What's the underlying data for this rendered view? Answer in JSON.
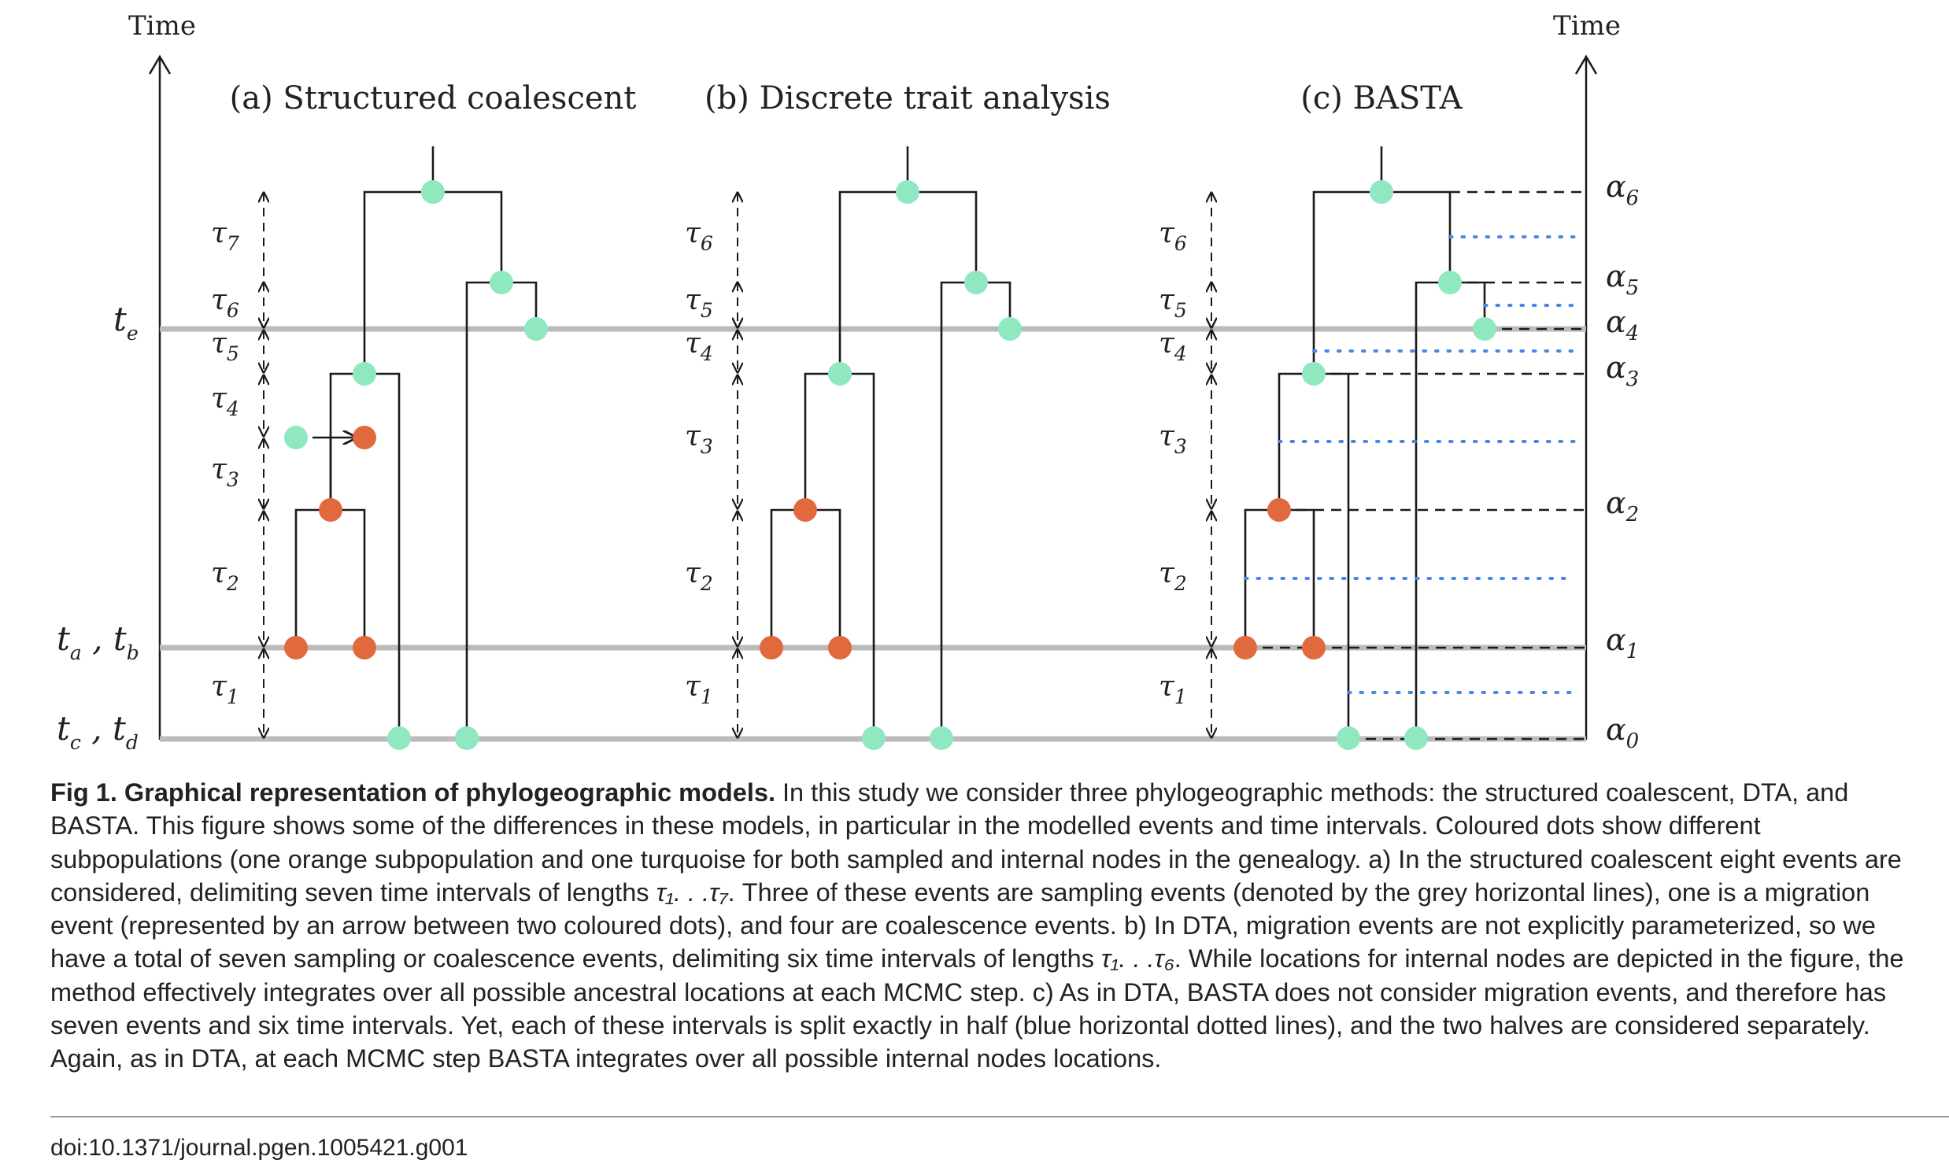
{
  "figure": {
    "axis_time_left": "Time",
    "axis_time_right": "Time",
    "panels": [
      {
        "title": "(a) Structured coalescent",
        "tau": [
          "1",
          "2",
          "3",
          "4",
          "5",
          "6",
          "7"
        ]
      },
      {
        "title": "(b) Discrete trait analysis",
        "tau": [
          "1",
          "2",
          "3",
          "4",
          "5",
          "6"
        ]
      },
      {
        "title": "(c) BASTA",
        "tau": [
          "1",
          "2",
          "3",
          "4",
          "5",
          "6"
        ]
      }
    ],
    "sampling_labels": {
      "te": {
        "t": "t",
        "sub": "e"
      },
      "tab": {
        "t1": "t",
        "s1": "a",
        "sep": " , ",
        "t2": "t",
        "s2": "b"
      },
      "tcd": {
        "t1": "t",
        "s1": "c",
        "sep": " , ",
        "t2": "t",
        "s2": "d"
      }
    },
    "alpha_labels": [
      "0",
      "1",
      "2",
      "3",
      "4",
      "5",
      "6"
    ],
    "tau_symbol": "τ",
    "alpha_symbol": "α",
    "colors": {
      "orange": "#e06a3e",
      "turquoise": "#8fe8c0",
      "grey_line": "#bbbbbb",
      "blue_dotted": "#4a86e8",
      "tree": "#1a1a1a"
    }
  },
  "caption": {
    "title": "Fig 1. Graphical representation of phylogeographic models.",
    "body_part1": " In this study we consider three phylogeographic methods: the structured coalescent, DTA, and BASTA. This figure shows some of the differences in these models, in particular in the modelled events and time intervals. Coloured dots show different subpopulations (one orange subpopulation and one turquoise for both sampled and internal nodes in the genealogy. a) In the structured coalescent eight events are considered, delimiting seven time intervals of lengths ",
    "span1": "τ₁. . .τ₇",
    "body_part2": ". Three of these events are sampling events (denoted by the grey horizontal lines), one is a migration event (represented by an arrow between two coloured dots), and four are coalescence events. b) In DTA, migration events are not explicitly parameterized, so we have a total of seven sampling or coalescence events, delimiting six time intervals of lengths ",
    "span2": "τ₁. . .τ₆",
    "body_part3": ". While locations for internal nodes are depicted in the figure, the method effectively integrates over all possible ancestral locations at each MCMC step. c) As in DTA, BASTA does not consider migration events, and therefore has seven events and six time intervals. Yet, each of these intervals is split exactly in half (blue horizontal dotted lines), and the two halves are considered separately. Again, as in DTA, at each MCMC step BASTA integrates over all possible internal nodes locations."
  },
  "doi": "doi:10.1371/journal.pgen.1005421.g001"
}
